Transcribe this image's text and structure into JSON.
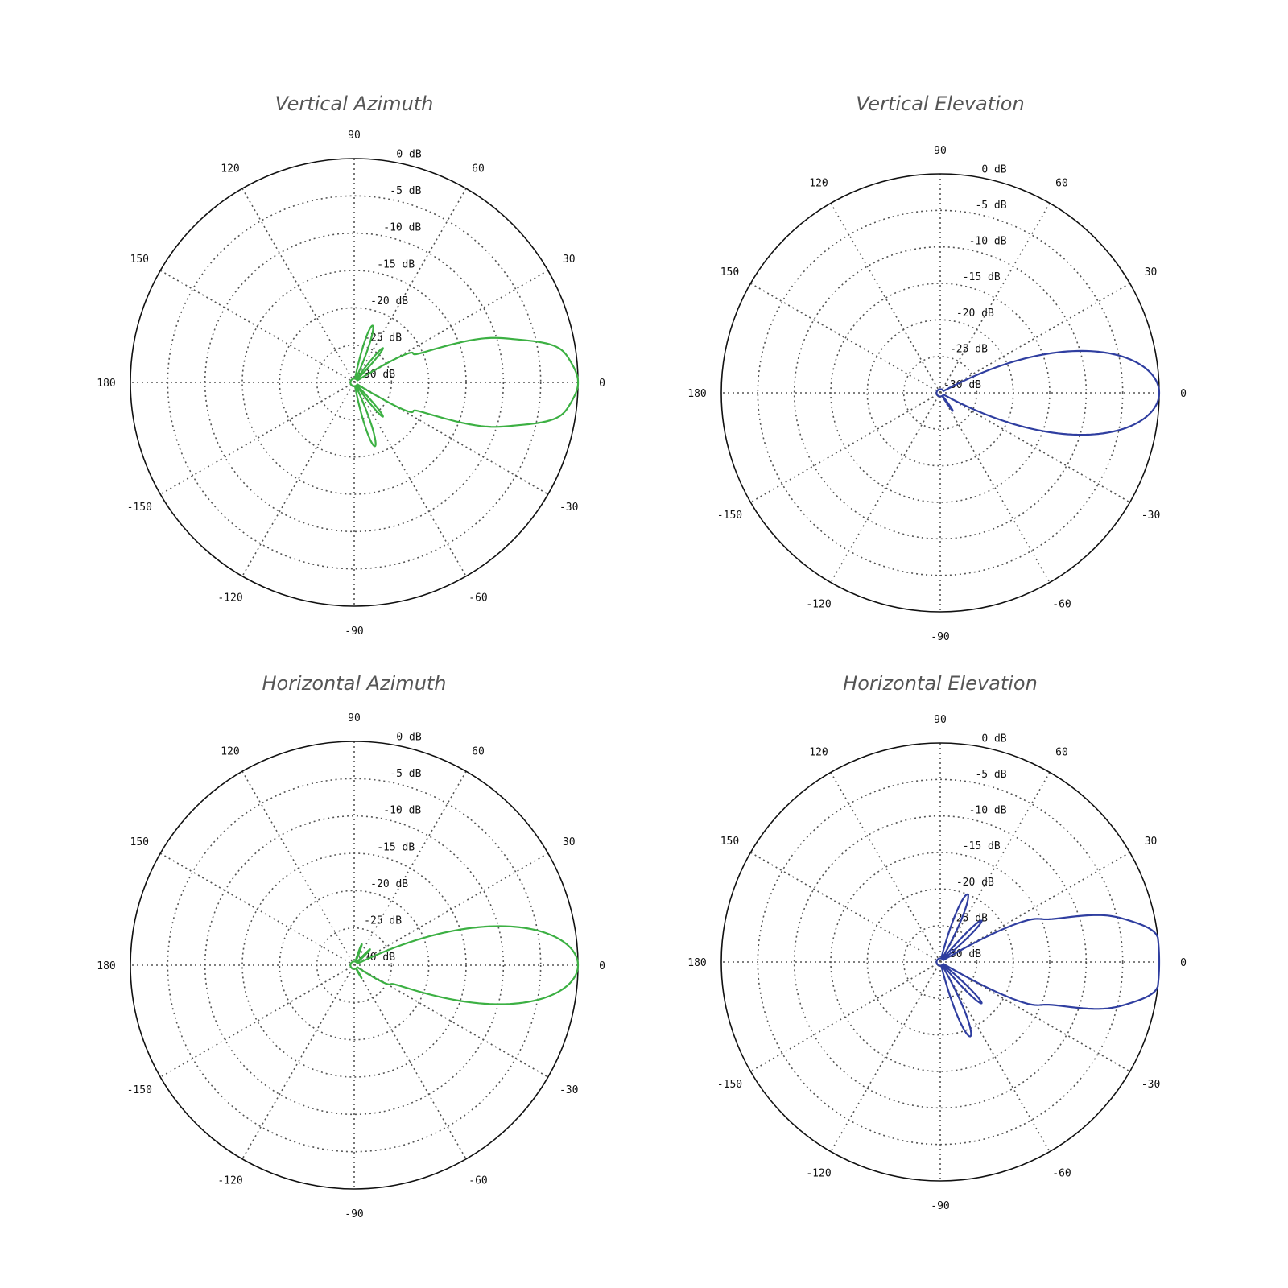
{
  "chart_data": [
    {
      "type": "polar-line",
      "title": "Vertical Azimuth",
      "color": "#3cb043",
      "angle_labels": [
        "0",
        "30",
        "60",
        "90",
        "120",
        "150",
        "180",
        "-150",
        "-120",
        "-90",
        "-60",
        "-30"
      ],
      "ring_labels": [
        "0 dB",
        "-5 dB",
        "-10 dB",
        "-15 dB",
        "-20 dB",
        "-25 dB",
        "-30 dB"
      ],
      "rlim_db": [
        -30,
        0
      ],
      "series": [
        {
          "lobes": [
            {
              "angle": 0,
              "gain_db": 0,
              "width": 10
            },
            {
              "angle": 10,
              "gain_db": -17,
              "width": 3
            },
            {
              "angle": 18,
              "gain_db": -21,
              "width": 3
            },
            {
              "angle": 28,
              "gain_db": -24,
              "width": 3
            },
            {
              "angle": 50,
              "gain_db": -24,
              "width": 4
            },
            {
              "angle": 72,
              "gain_db": -22,
              "width": 5
            },
            {
              "angle": -10,
              "gain_db": -17,
              "width": 3
            },
            {
              "angle": -18,
              "gain_db": -21,
              "width": 3
            },
            {
              "angle": -28,
              "gain_db": -24,
              "width": 3
            },
            {
              "angle": -50,
              "gain_db": -24,
              "width": 4
            },
            {
              "angle": -72,
              "gain_db": -21,
              "width": 5
            }
          ]
        }
      ]
    },
    {
      "type": "polar-line",
      "title": "Vertical Elevation",
      "color": "#2f3ea0",
      "angle_labels": [
        "0",
        "30",
        "60",
        "90",
        "120",
        "150",
        "180",
        "-150",
        "-120",
        "-90",
        "-60",
        "-30"
      ],
      "ring_labels": [
        "0 dB",
        "-5 dB",
        "-10 dB",
        "-15 dB",
        "-20 dB",
        "-25 dB",
        "-30 dB"
      ],
      "rlim_db": [
        -30,
        0
      ],
      "series": [
        {
          "lobes": [
            {
              "angle": 0,
              "gain_db": 0,
              "width": 11
            },
            {
              "angle": -55,
              "gain_db": -27,
              "width": 4
            }
          ]
        }
      ]
    },
    {
      "type": "polar-line",
      "title": "Horizontal Azimuth",
      "color": "#3cb043",
      "angle_labels": [
        "0",
        "30",
        "60",
        "90",
        "120",
        "150",
        "180",
        "-150",
        "-120",
        "-90",
        "-60",
        "-30"
      ],
      "ring_labels": [
        "0 dB",
        "-5 dB",
        "-10 dB",
        "-15 dB",
        "-20 dB",
        "-25 dB",
        "-30 dB"
      ],
      "rlim_db": [
        -30,
        0
      ],
      "series": [
        {
          "lobes": [
            {
              "angle": 0,
              "gain_db": 0,
              "width": 10
            },
            {
              "angle": 45,
              "gain_db": -27,
              "width": 4
            },
            {
              "angle": 70,
              "gain_db": -27,
              "width": 4
            },
            {
              "angle": -30,
              "gain_db": -27,
              "width": 4
            },
            {
              "angle": -60,
              "gain_db": -28,
              "width": 4
            }
          ]
        }
      ]
    },
    {
      "type": "polar-line",
      "title": "Horizontal Elevation",
      "color": "#2f3ea0",
      "angle_labels": [
        "0",
        "30",
        "60",
        "90",
        "120",
        "150",
        "180",
        "-150",
        "-120",
        "-90",
        "-60",
        "-30"
      ],
      "ring_labels": [
        "0 dB",
        "-5 dB",
        "-10 dB",
        "-15 dB",
        "-20 dB",
        "-25 dB",
        "-30 dB"
      ],
      "rlim_db": [
        -30,
        0
      ],
      "series": [
        {
          "lobes": [
            {
              "angle": 0,
              "gain_db": 0,
              "width": 11
            },
            {
              "angle": 8,
              "gain_db": -15,
              "width": 3
            },
            {
              "angle": 15,
              "gain_db": -19,
              "width": 3
            },
            {
              "angle": 25,
              "gain_db": -22,
              "width": 3
            },
            {
              "angle": 45,
              "gain_db": -22,
              "width": 4
            },
            {
              "angle": 68,
              "gain_db": -20,
              "width": 5
            },
            {
              "angle": -8,
              "gain_db": -15,
              "width": 3
            },
            {
              "angle": -15,
              "gain_db": -19,
              "width": 3
            },
            {
              "angle": -25,
              "gain_db": -22,
              "width": 3
            },
            {
              "angle": -45,
              "gain_db": -22,
              "width": 4
            },
            {
              "angle": -68,
              "gain_db": -19,
              "width": 5
            }
          ]
        }
      ]
    }
  ]
}
